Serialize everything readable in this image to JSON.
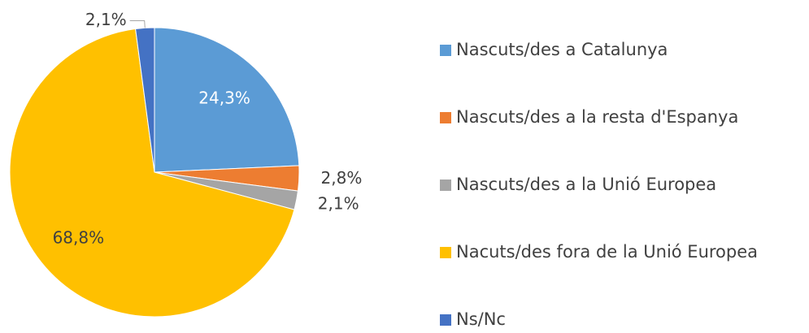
{
  "chart_data": {
    "type": "pie",
    "categories": [
      "Nascuts/des a Catalunya",
      "Nascuts/des a la resta d'Espanya",
      "Nascuts/des a la Unió Europea",
      "Nacuts/des fora de la Unió Europea",
      "Ns/Nc"
    ],
    "values": [
      24.3,
      2.8,
      2.1,
      68.8,
      2.1
    ],
    "value_labels": [
      "24,3%",
      "2,8%",
      "2,1%",
      "68,8%",
      "2,1%"
    ],
    "colors": [
      "#5b9bd5",
      "#ed7d31",
      "#a5a5a5",
      "#ffc000",
      "#4472c4"
    ],
    "legend": "right"
  }
}
